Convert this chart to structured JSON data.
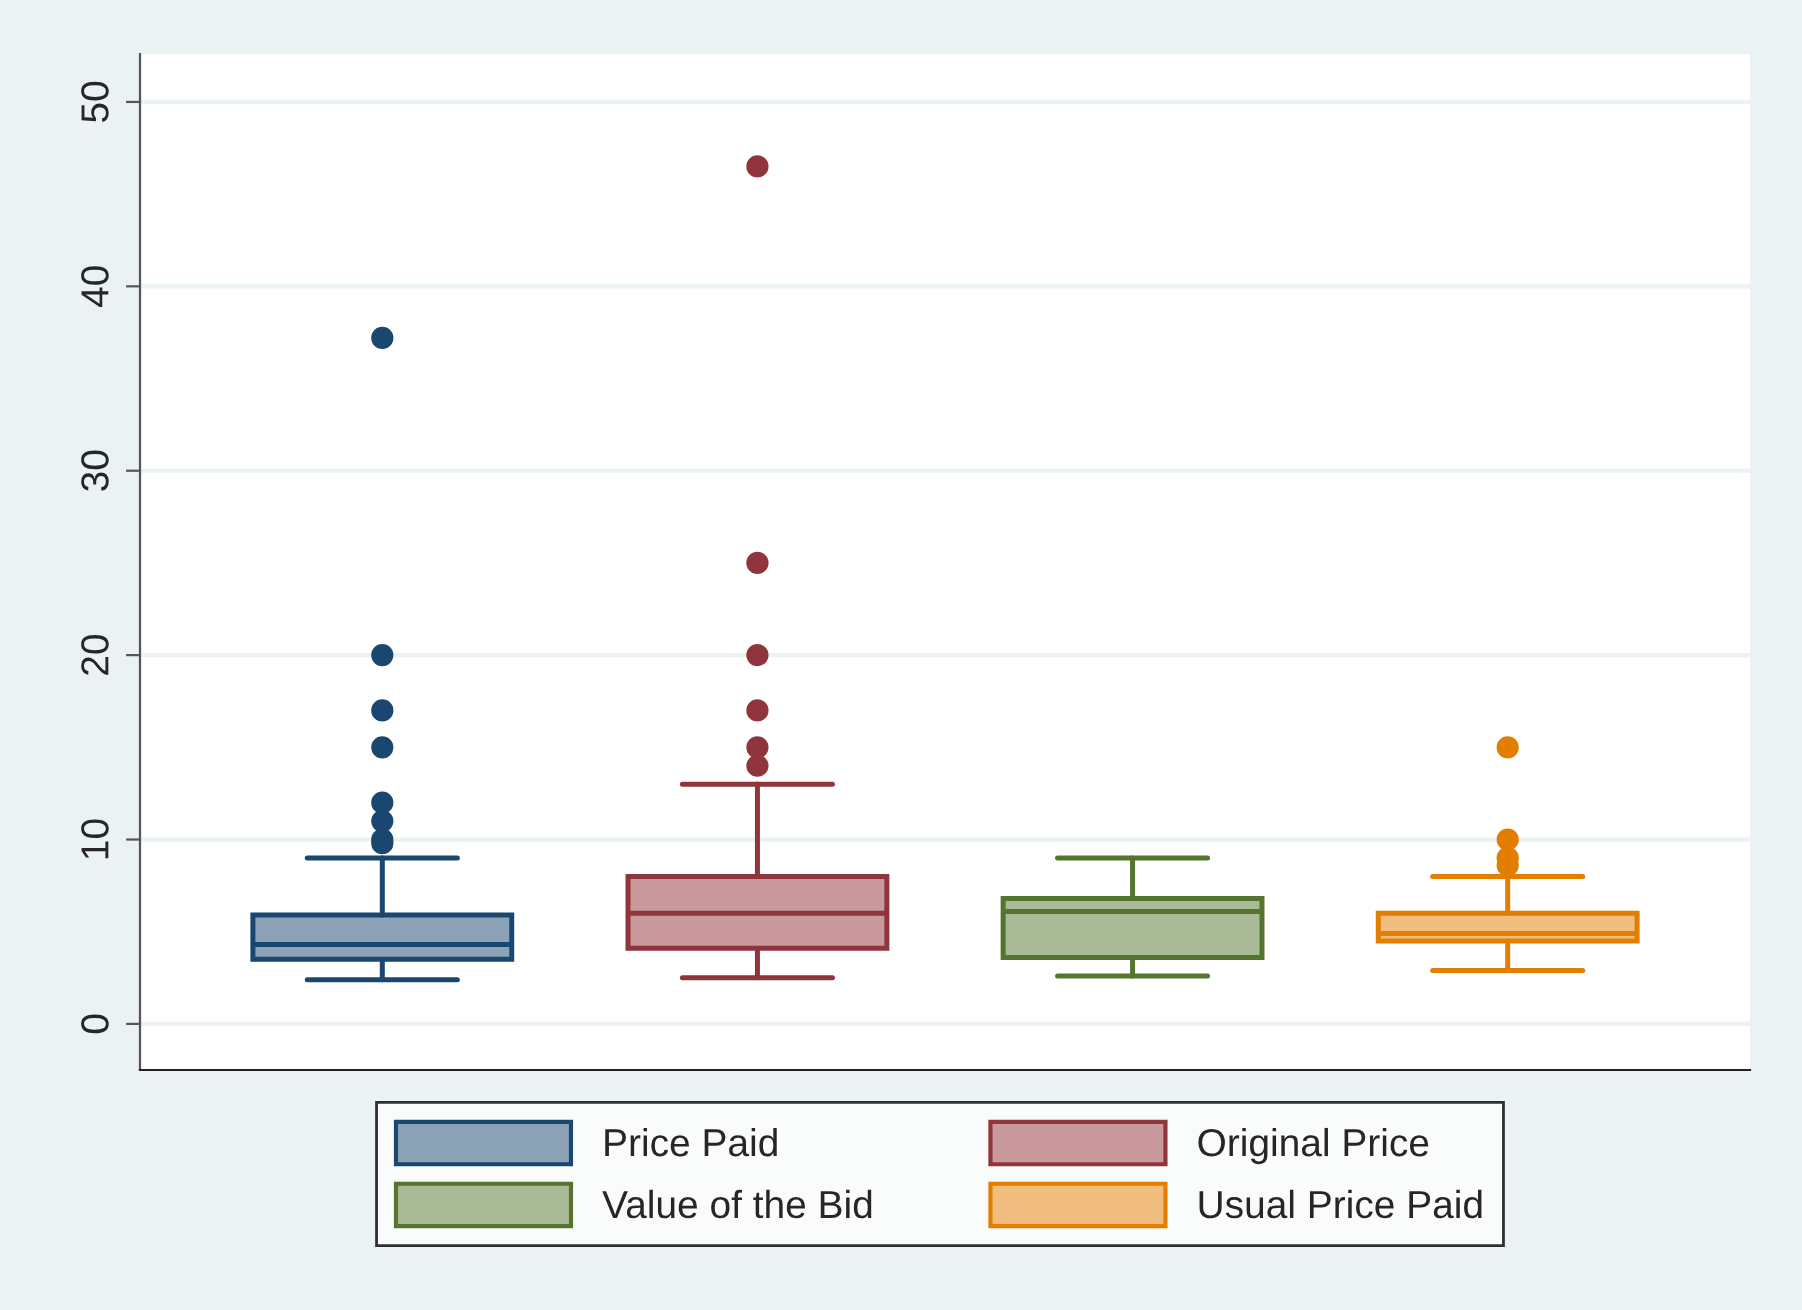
{
  "chart_data": {
    "type": "box",
    "categories": [
      null
    ],
    "series": [
      {
        "name": "Price Paid",
        "color": "#1a476f",
        "boxes": [
          {
            "low": 2.4,
            "q1": 3.5,
            "median": 4.3,
            "q3": 5.9,
            "high": 9,
            "outliers": [
              9.8,
              10,
              11,
              12,
              15,
              17,
              20,
              37.2
            ]
          }
        ]
      },
      {
        "name": "Original Price",
        "color": "#90353b",
        "boxes": [
          {
            "low": 2.5,
            "q1": 4.1,
            "median": 6,
            "q3": 8,
            "high": 13,
            "outliers": [
              14,
              15,
              17,
              20,
              25,
              46.5
            ]
          }
        ]
      },
      {
        "name": "Value of the Bid",
        "color": "#55752f",
        "boxes": [
          {
            "low": 2.6,
            "q1": 3.6,
            "median": 6.1,
            "q3": 6.8,
            "high": 9
          }
        ]
      },
      {
        "name": "Usual Price Paid",
        "color": "#e37e00",
        "boxes": [
          {
            "low": 2.9,
            "q1": 4.5,
            "median": 4.9,
            "q3": 6,
            "high": 8,
            "outliers": [
              8.6,
              9,
              10,
              15
            ]
          }
        ]
      }
    ],
    "ylim": [
      -2.5,
      52.6
    ],
    "yticks": [
      0,
      10,
      20,
      30,
      40,
      50
    ],
    "grid": "y",
    "legend": "bottom"
  }
}
